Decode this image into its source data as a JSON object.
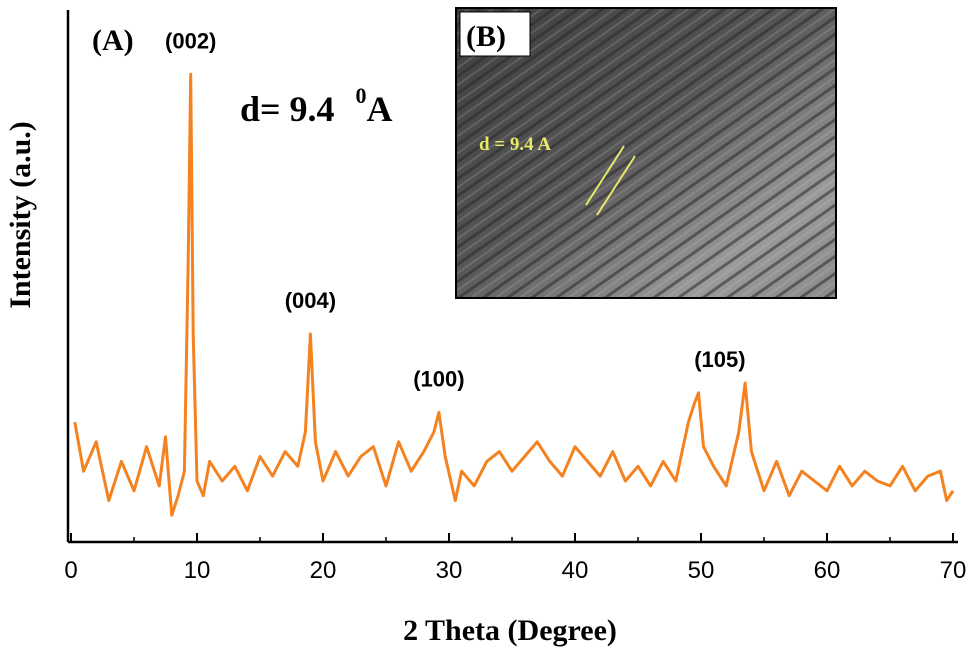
{
  "chart_data": {
    "type": "line",
    "panel_a_label": "(A)",
    "panel_b_label": "(B)",
    "xlabel": "2 Theta (Degree)",
    "ylabel": "Intensity (a.u.)",
    "xlim": [
      0,
      70
    ],
    "xticks": [
      "0",
      "10",
      "20",
      "30",
      "40",
      "50",
      "60",
      "70"
    ],
    "yticks_shown": false,
    "grid": false,
    "line_color": "#f58220",
    "annotation_d": {
      "prefix": "d= 9.4 ",
      "superscript": "0",
      "unit": "A"
    },
    "inset_annotation": "d = 9.4 A",
    "inset_annotation_color": "#e8e86a",
    "peaks": [
      {
        "label": "(002)",
        "two_theta": 9.5,
        "relative_intensity": 0.93
      },
      {
        "label": "(004)",
        "two_theta": 19.0,
        "relative_intensity": 0.4
      },
      {
        "label": "(100)",
        "two_theta": 29.2,
        "relative_intensity": 0.24
      },
      {
        "label": "(105)",
        "two_theta": 49.8,
        "relative_intensity": 0.28
      },
      {
        "label": "",
        "two_theta": 53.5,
        "relative_intensity": 0.3
      }
    ],
    "series": [
      {
        "x": [
          0.3,
          1.0,
          2.0,
          3.0,
          4.0,
          5.0,
          6.0,
          7.0,
          7.5,
          8.0,
          8.5,
          9.0,
          9.3,
          9.5,
          9.7,
          10.0,
          10.5,
          11.0,
          12.0,
          13.0,
          14.0,
          15.0,
          16.0,
          17.0,
          18.0,
          18.6,
          19.0,
          19.4,
          20.0,
          21.0,
          22.0,
          23.0,
          24.0,
          25.0,
          26.0,
          27.0,
          28.0,
          28.8,
          29.2,
          29.7,
          30.5,
          31.0,
          32.0,
          33.0,
          34.0,
          35.0,
          36.0,
          37.0,
          38.0,
          39.0,
          40.0,
          41.0,
          42.0,
          43.0,
          44.0,
          45.0,
          46.0,
          47.0,
          48.0,
          49.0,
          49.5,
          49.8,
          50.2,
          51.0,
          52.0,
          53.0,
          53.5,
          54.0,
          55.0,
          56.0,
          57.0,
          58.0,
          59.0,
          60.0,
          61.0,
          62.0,
          63.0,
          64.0,
          65.0,
          66.0,
          67.0,
          68.0,
          69.0,
          69.5,
          70.0
        ],
        "y": [
          0.22,
          0.12,
          0.18,
          0.06,
          0.14,
          0.08,
          0.17,
          0.09,
          0.19,
          0.03,
          0.07,
          0.12,
          0.55,
          0.93,
          0.4,
          0.1,
          0.07,
          0.14,
          0.1,
          0.13,
          0.08,
          0.15,
          0.11,
          0.16,
          0.13,
          0.2,
          0.4,
          0.18,
          0.1,
          0.16,
          0.11,
          0.15,
          0.17,
          0.09,
          0.18,
          0.12,
          0.16,
          0.2,
          0.24,
          0.15,
          0.06,
          0.12,
          0.09,
          0.14,
          0.16,
          0.12,
          0.15,
          0.18,
          0.14,
          0.11,
          0.17,
          0.14,
          0.11,
          0.16,
          0.1,
          0.13,
          0.09,
          0.14,
          0.1,
          0.22,
          0.26,
          0.28,
          0.17,
          0.13,
          0.09,
          0.2,
          0.3,
          0.16,
          0.08,
          0.14,
          0.07,
          0.12,
          0.1,
          0.08,
          0.13,
          0.09,
          0.12,
          0.1,
          0.09,
          0.13,
          0.08,
          0.11,
          0.12,
          0.06,
          0.08
        ]
      }
    ]
  }
}
